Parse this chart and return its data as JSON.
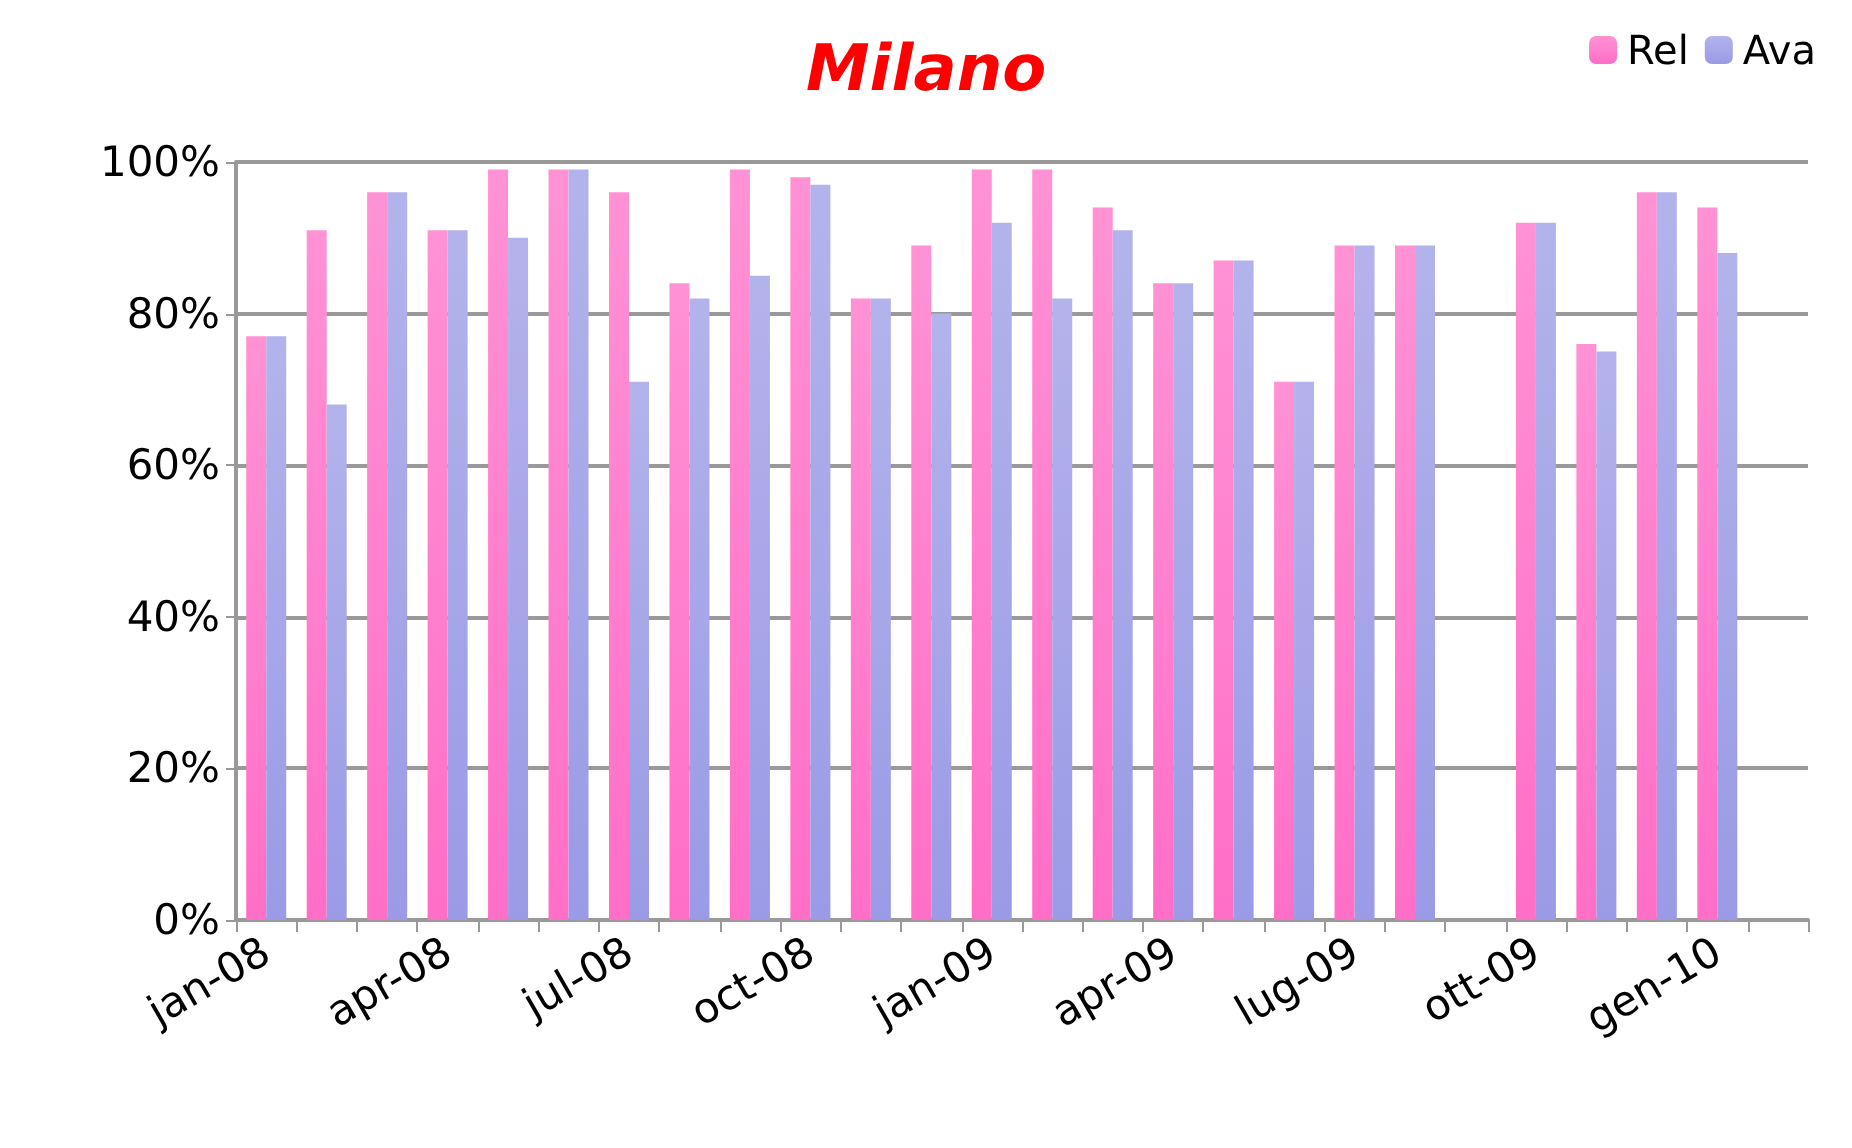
{
  "chart_data": {
    "type": "bar",
    "title": "Milano",
    "categories": [
      "jan-08",
      null,
      null,
      "apr-08",
      null,
      null,
      "jul-08",
      null,
      null,
      "oct-08",
      null,
      null,
      "jan-09",
      null,
      null,
      "apr-09",
      null,
      null,
      "lug-09",
      null,
      null,
      "ott-09",
      null,
      null,
      "gen-10",
      null
    ],
    "series": [
      {
        "name": "Rel",
        "color": "#ff6ec7",
        "values": [
          77,
          91,
          96,
          91,
          99,
          99,
          96,
          84,
          99,
          98,
          82,
          89,
          99,
          99,
          94,
          84,
          87,
          71,
          89,
          89,
          null,
          92,
          76,
          96,
          94,
          null
        ]
      },
      {
        "name": "Ava",
        "color": "#9a9ae6",
        "values": [
          77,
          68,
          96,
          91,
          90,
          99,
          71,
          82,
          85,
          97,
          82,
          80,
          92,
          82,
          91,
          84,
          87,
          71,
          89,
          89,
          null,
          92,
          75,
          96,
          88,
          null
        ]
      }
    ],
    "ylim": [
      0,
      100
    ],
    "yticks": [
      {
        "value": 0,
        "label": "0%"
      },
      {
        "value": 20,
        "label": "20%"
      },
      {
        "value": 40,
        "label": "40%"
      },
      {
        "value": 60,
        "label": "60%"
      },
      {
        "value": 80,
        "label": "80%"
      },
      {
        "value": 100,
        "label": "100%"
      }
    ],
    "grid": "y",
    "legend": "top right"
  }
}
